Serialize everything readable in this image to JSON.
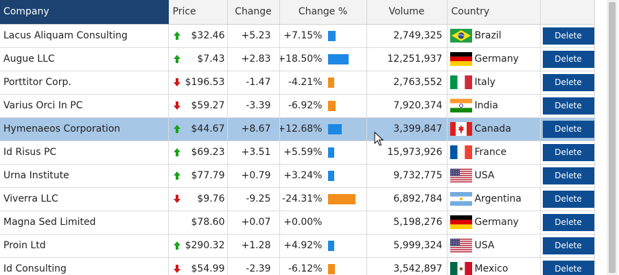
{
  "columns": {
    "company": "Company",
    "price": "Price",
    "change": "Change",
    "change_pct": "Change %",
    "volume": "Volume",
    "country": "Country"
  },
  "delete_label": "Delete",
  "colors": {
    "header_selected": "#1b4270",
    "row_highlight": "#a7c7e6",
    "delete_button": "#0e4d92",
    "up_arrow": "#1aa31a",
    "down_arrow": "#d11717",
    "bar_up": "#1e88e5",
    "bar_down": "#f28e1c"
  },
  "rows": [
    {
      "company": "Lacus Aliquam Consulting",
      "price": "$32.46",
      "trend": "up",
      "change": "+5.23",
      "change_pct": "+7.15%",
      "volume": "2,749,325",
      "country": "Brazil",
      "flag": "brazil-flag-icon"
    },
    {
      "company": "Augue LLC",
      "price": "$7.43",
      "trend": "up",
      "change": "+2.83",
      "change_pct": "+18.50%",
      "volume": "12,251,937",
      "country": "Germany",
      "flag": "germany-flag-icon"
    },
    {
      "company": "Porttitor Corp.",
      "price": "$196.53",
      "trend": "down",
      "change": "-1.47",
      "change_pct": "-4.21%",
      "volume": "2,763,552",
      "country": "Italy",
      "flag": "italy-flag-icon"
    },
    {
      "company": "Varius Orci In PC",
      "price": "$59.27",
      "trend": "down",
      "change": "-3.39",
      "change_pct": "-6.92%",
      "volume": "7,920,374",
      "country": "India",
      "flag": "india-flag-icon"
    },
    {
      "company": "Hymenaeos Corporation",
      "price": "$44.67",
      "trend": "up",
      "change": "+8.67",
      "change_pct": "+12.68%",
      "volume": "3,399,847",
      "country": "Canada",
      "flag": "canada-flag-icon",
      "highlight": true
    },
    {
      "company": "Id Risus PC",
      "price": "$69.23",
      "trend": "up",
      "change": "+3.51",
      "change_pct": "+5.59%",
      "volume": "15,973,926",
      "country": "France",
      "flag": "france-flag-icon"
    },
    {
      "company": "Urna Institute",
      "price": "$77.79",
      "trend": "up",
      "change": "+0.79",
      "change_pct": "+3.24%",
      "volume": "9,732,775",
      "country": "USA",
      "flag": "usa-flag-icon"
    },
    {
      "company": "Viverra LLC",
      "price": "$9.76",
      "trend": "down",
      "change": "-9.25",
      "change_pct": "-24.31%",
      "volume": "6,892,784",
      "country": "Argentina",
      "flag": "argentina-flag-icon"
    },
    {
      "company": "Magna Sed Limited",
      "price": "$78.60",
      "trend": "none",
      "change": "+0.07",
      "change_pct": "+0.00%",
      "volume": "5,198,276",
      "country": "Germany",
      "flag": "germany-flag-icon"
    },
    {
      "company": "Proin Ltd",
      "price": "$290.32",
      "trend": "up",
      "change": "+1.28",
      "change_pct": "+4.92%",
      "volume": "5,999,324",
      "country": "USA",
      "flag": "usa-flag-icon"
    },
    {
      "company": "Id Consulting",
      "price": "$54.99",
      "trend": "down",
      "change": "-2.39",
      "change_pct": "-6.12%",
      "volume": "3,542,897",
      "country": "Mexico",
      "flag": "mexico-flag-icon"
    }
  ]
}
